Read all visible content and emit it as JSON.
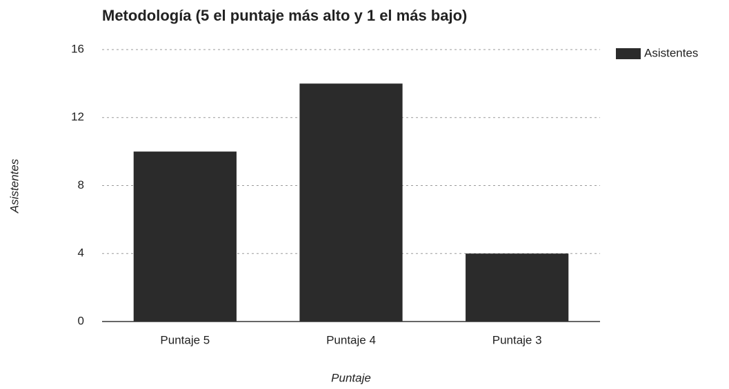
{
  "chart_data": {
    "type": "bar",
    "title": "Metodología (5 el puntaje más alto y 1 el más bajo)",
    "x_label": "Puntaje",
    "y_label": "Asistentes",
    "categories": [
      "Puntaje 5",
      "Puntaje 4",
      "Puntaje 3"
    ],
    "series": [
      {
        "name": "Asistentes",
        "color": "#2b2b2b",
        "values": [
          10,
          14,
          4
        ]
      }
    ],
    "ylim": [
      0,
      16
    ],
    "yticks": [
      0,
      4,
      8,
      12,
      16
    ],
    "grid": true,
    "legend": "right"
  }
}
